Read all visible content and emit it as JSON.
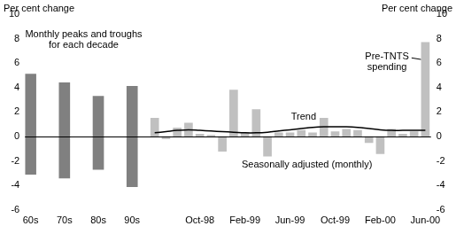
{
  "chart_data": {
    "type": "bar",
    "y_label": "Per cent change",
    "y2_label": "Per cent change",
    "categories": [
      "60s",
      null,
      null,
      "70s",
      null,
      null,
      "80s",
      null,
      null,
      "90s",
      null,
      null,
      null,
      null,
      null,
      "Oct-98",
      null,
      null,
      null,
      "Feb-99",
      null,
      null,
      null,
      "Jun-99",
      null,
      null,
      null,
      "Oct-99",
      null,
      null,
      null,
      "Feb-00",
      null,
      null,
      null,
      "Jun-00"
    ],
    "series": [
      {
        "type": "bar",
        "color": "#808080",
        "values": [
          [
            -3.1,
            5.1
          ],
          null,
          null,
          [
            -3.4,
            4.4
          ],
          null,
          null,
          [
            -2.7,
            3.3
          ],
          null,
          null,
          [
            -4.1,
            4.1
          ],
          null,
          null,
          null,
          null,
          null,
          null,
          null,
          null,
          null,
          null,
          null,
          null,
          null,
          null,
          null,
          null,
          null,
          null,
          null,
          null,
          null,
          null,
          null,
          null,
          null,
          null
        ]
      },
      {
        "type": "bar",
        "color": "#c0c0c0",
        "values": [
          null,
          null,
          null,
          null,
          null,
          null,
          null,
          null,
          null,
          null,
          null,
          1.5,
          -0.2,
          0.7,
          1.1,
          0.2,
          0.1,
          -1.2,
          3.8,
          0.3,
          2.2,
          -1.6,
          0.3,
          0.3,
          0.5,
          0.3,
          1.5,
          0.4,
          0.6,
          0.5,
          -0.5,
          -1.4,
          0.6,
          0.2,
          0.4,
          7.7
        ]
      },
      {
        "type": "line",
        "color": "#000000",
        "values": [
          null,
          null,
          null,
          null,
          null,
          null,
          null,
          null,
          null,
          null,
          null,
          0.3,
          0.4,
          0.5,
          0.55,
          0.5,
          0.45,
          0.4,
          0.35,
          0.3,
          0.3,
          0.35,
          0.45,
          0.55,
          0.65,
          0.75,
          0.8,
          0.8,
          0.8,
          0.75,
          0.65,
          0.55,
          0.5,
          0.5,
          0.5,
          0.5
        ]
      }
    ],
    "annotations": [
      {
        "text": [
          "Monthly peaks and troughs",
          "for each decade"
        ]
      },
      {
        "text": [
          "Pre-TNTS",
          "spending"
        ]
      },
      {
        "text": [
          "Trend"
        ]
      },
      {
        "text": [
          "Seasonally adjusted (monthly)"
        ]
      }
    ],
    "ylim": [
      -6,
      10
    ],
    "yticks": [
      -6,
      -4,
      -2,
      0,
      2,
      4,
      6,
      8,
      10
    ],
    "y2lim": [
      -6,
      10
    ],
    "y2ticks": [
      -6,
      -4,
      -2,
      0,
      2,
      4,
      6,
      8,
      10
    ],
    "grid": false,
    "legend": "none"
  }
}
